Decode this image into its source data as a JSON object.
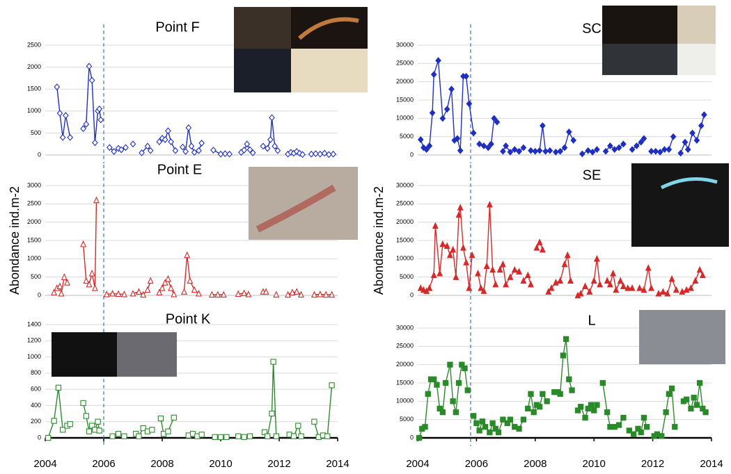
{
  "chart_data": [
    {
      "type": "line",
      "title": "Point F",
      "color": "#1f2fbf",
      "marker": "diamond",
      "marker_fill": "open",
      "xlim": [
        2004,
        2014
      ],
      "ylim": [
        0,
        2500
      ],
      "yticks": [
        0,
        500,
        1000,
        1500,
        2000,
        2500
      ],
      "grid": true,
      "vline": 2006,
      "x": [
        2004.4,
        2004.5,
        2004.6,
        2004.7,
        2004.85,
        2005.0,
        2005.3,
        2005.4,
        2005.5,
        2005.6,
        2005.7,
        2005.8,
        2005.85,
        2005.9,
        2006.0,
        2006.2,
        2006.35,
        2006.5,
        2006.6,
        2006.75,
        2006.9,
        2007.0,
        2007.15,
        2007.3,
        2007.5,
        2007.6,
        2007.75,
        2007.9,
        2008.0,
        2008.1,
        2008.2,
        2008.3,
        2008.45,
        2008.6,
        2008.7,
        2008.8,
        2008.9,
        2009.0,
        2009.1,
        2009.25,
        2009.35,
        2009.5,
        2009.75,
        2010.0,
        2010.15,
        2010.3,
        2010.5,
        2010.7,
        2010.8,
        2010.9,
        2011.0,
        2011.1,
        2011.3,
        2011.45,
        2011.6,
        2011.7,
        2011.75,
        2011.85,
        2011.95,
        2012.1,
        2012.3,
        2012.4,
        2012.5,
        2012.6,
        2012.7,
        2012.8,
        2012.95,
        2013.1,
        2013.25,
        2013.4,
        2013.55,
        2013.7,
        2013.85
      ],
      "values": [
        1550,
        950,
        400,
        900,
        400,
        null,
        600,
        700,
        2020,
        1700,
        280,
        1000,
        1050,
        800,
        null,
        170,
        80,
        150,
        120,
        170,
        null,
        250,
        null,
        50,
        200,
        100,
        null,
        300,
        380,
        350,
        550,
        300,
        100,
        null,
        180,
        80,
        620,
        200,
        60,
        100,
        270,
        null,
        110,
        20,
        30,
        20,
        null,
        60,
        110,
        250,
        120,
        50,
        null,
        200,
        150,
        350,
        850,
        200,
        100,
        null,
        20,
        60,
        40,
        80,
        40,
        10,
        null,
        20,
        30,
        20,
        40,
        10,
        20
      ]
    },
    {
      "type": "line",
      "title": "Point E",
      "ylabel": "Abondance ind.m-2",
      "color": "#d42a2a",
      "marker": "triangle",
      "marker_fill": "open",
      "xlim": [
        2004,
        2014
      ],
      "ylim": [
        0,
        3000
      ],
      "yticks": [
        0,
        500,
        1000,
        1500,
        2000,
        2500,
        3000
      ],
      "grid": true,
      "vline": 2006,
      "x": [
        2004.3,
        2004.4,
        2004.5,
        2004.55,
        2004.65,
        2004.75,
        2005.0,
        2005.3,
        2005.4,
        2005.5,
        2005.6,
        2005.7,
        2005.75,
        2005.9,
        2006.1,
        2006.3,
        2006.5,
        2006.7,
        2006.85,
        2007.0,
        2007.2,
        2007.35,
        2007.5,
        2007.6,
        2007.75,
        2007.9,
        2008.0,
        2008.1,
        2008.2,
        2008.3,
        2008.4,
        2008.6,
        2008.75,
        2008.85,
        2008.95,
        2009.1,
        2009.25,
        2009.5,
        2009.7,
        2009.9,
        2010.1,
        2010.35,
        2010.6,
        2010.8,
        2010.95,
        2011.2,
        2011.45,
        2011.55,
        2011.7,
        2011.9,
        2012.1,
        2012.3,
        2012.45,
        2012.6,
        2012.75,
        2013.0,
        2013.2,
        2013.4,
        2013.6,
        2013.8
      ],
      "values": [
        80,
        200,
        250,
        50,
        500,
        350,
        null,
        1400,
        400,
        300,
        600,
        200,
        2600,
        null,
        30,
        50,
        40,
        30,
        null,
        50,
        100,
        20,
        150,
        400,
        null,
        80,
        200,
        350,
        450,
        200,
        30,
        null,
        100,
        1100,
        400,
        150,
        50,
        null,
        20,
        20,
        20,
        null,
        40,
        60,
        30,
        null,
        100,
        100,
        null,
        20,
        null,
        20,
        80,
        100,
        20,
        null,
        20,
        30,
        20,
        20
      ]
    },
    {
      "type": "line",
      "title": "Point K",
      "color": "#2a8a2a",
      "marker": "square",
      "marker_fill": "open",
      "xlim": [
        2004,
        2014
      ],
      "ylim": [
        0,
        1400
      ],
      "yticks": [
        0,
        200,
        400,
        600,
        800,
        1000,
        1200,
        1400
      ],
      "xticks": [
        2004,
        2006,
        2008,
        2010,
        2012,
        2014
      ],
      "grid": true,
      "vline": 2006,
      "x": [
        2004.1,
        2004.3,
        2004.45,
        2004.6,
        2004.75,
        2004.85,
        2005.1,
        2005.3,
        2005.4,
        2005.5,
        2005.6,
        2005.7,
        2005.8,
        2005.85,
        2006.1,
        2006.3,
        2006.5,
        2006.7,
        2006.9,
        2007.1,
        2007.2,
        2007.35,
        2007.5,
        2007.65,
        2007.8,
        2007.95,
        2008.05,
        2008.2,
        2008.4,
        2008.65,
        2008.9,
        2009.05,
        2009.2,
        2009.35,
        2009.6,
        2009.8,
        2010.0,
        2010.2,
        2010.4,
        2010.6,
        2010.8,
        2011.0,
        2011.25,
        2011.5,
        2011.6,
        2011.75,
        2011.8,
        2011.9,
        2012.1,
        2012.35,
        2012.5,
        2012.65,
        2012.75,
        2013.0,
        2013.2,
        2013.35,
        2013.5,
        2013.65,
        2013.8
      ],
      "values": [
        0,
        210,
        620,
        100,
        150,
        170,
        null,
        430,
        270,
        80,
        150,
        100,
        200,
        90,
        null,
        20,
        50,
        20,
        null,
        50,
        20,
        120,
        80,
        100,
        null,
        240,
        50,
        80,
        250,
        null,
        30,
        50,
        20,
        40,
        null,
        10,
        10,
        10,
        null,
        20,
        10,
        20,
        null,
        70,
        20,
        300,
        940,
        20,
        null,
        40,
        20,
        150,
        20,
        null,
        200,
        10,
        30,
        20,
        650
      ]
    },
    {
      "type": "line",
      "title": "SC",
      "color": "#1f2fbf",
      "marker": "diamond",
      "marker_fill": "filled",
      "xlim": [
        2004,
        2014
      ],
      "ylim": [
        0,
        30000
      ],
      "yticks": [
        0,
        5000,
        10000,
        15000,
        20000,
        25000,
        30000
      ],
      "grid": true,
      "vline": 2005.8,
      "x": [
        2004.1,
        2004.2,
        2004.3,
        2004.4,
        2004.5,
        2004.55,
        2004.7,
        2004.85,
        2005.0,
        2005.15,
        2005.25,
        2005.35,
        2005.45,
        2005.55,
        2005.65,
        2005.75,
        2005.9,
        2006.0,
        2006.1,
        2006.25,
        2006.4,
        2006.5,
        2006.6,
        2006.7,
        2006.8,
        2006.9,
        2007.0,
        2007.15,
        2007.3,
        2007.45,
        2007.6,
        2007.72,
        2007.85,
        2008.0,
        2008.15,
        2008.25,
        2008.35,
        2008.5,
        2008.6,
        2008.7,
        2008.85,
        2009.0,
        2009.15,
        2009.3,
        2009.45,
        2009.6,
        2009.8,
        2009.95,
        2010.1,
        2010.25,
        2010.4,
        2010.55,
        2010.7,
        2010.85,
        2011.0,
        2011.15,
        2011.3,
        2011.45,
        2011.6,
        2011.7,
        2011.82,
        2011.95,
        2012.1,
        2012.25,
        2012.4,
        2012.55,
        2012.7,
        2012.82,
        2012.95,
        2013.1,
        2013.2,
        2013.35,
        2013.5,
        2013.65,
        2013.75
      ],
      "values": [
        4200,
        2000,
        1500,
        2500,
        11500,
        22000,
        25800,
        10000,
        12500,
        18000,
        4000,
        4500,
        1200,
        21500,
        21500,
        14000,
        6000,
        null,
        3000,
        2500,
        2000,
        3000,
        10000,
        9000,
        null,
        1000,
        2500,
        800,
        1500,
        1000,
        2000,
        null,
        1200,
        1000,
        1200,
        8000,
        1000,
        1200,
        null,
        800,
        1000,
        2000,
        6300,
        4000,
        null,
        300,
        1200,
        800,
        1500,
        null,
        1000,
        2500,
        1500,
        2000,
        3000,
        null,
        1500,
        2500,
        3500,
        4500,
        null,
        1000,
        1000,
        800,
        1500,
        1500,
        5000,
        null,
        500,
        3500,
        1500,
        6000,
        4000,
        8000,
        11000
      ]
    },
    {
      "type": "line",
      "title": "SE",
      "ylabel": "Abondance ind.m-2",
      "color": "#d42a2a",
      "marker": "triangle",
      "marker_fill": "filled",
      "xlim": [
        2004,
        2014
      ],
      "ylim": [
        0,
        30000
      ],
      "yticks": [
        0,
        5000,
        10000,
        15000,
        20000,
        25000,
        30000
      ],
      "grid": true,
      "vline": 2005.8,
      "x": [
        2004.1,
        2004.2,
        2004.3,
        2004.4,
        2004.55,
        2004.6,
        2004.75,
        2004.85,
        2005.0,
        2005.1,
        2005.2,
        2005.3,
        2005.4,
        2005.45,
        2005.55,
        2005.65,
        2005.75,
        2005.85,
        2005.95,
        2006.05,
        2006.15,
        2006.25,
        2006.35,
        2006.45,
        2006.55,
        2006.65,
        2006.72,
        2006.8,
        2006.9,
        2007.0,
        2007.15,
        2007.3,
        2007.45,
        2007.52,
        2007.6,
        2007.75,
        2007.85,
        2007.95,
        2008.05,
        2008.15,
        2008.25,
        2008.35,
        2008.45,
        2008.55,
        2008.7,
        2008.85,
        2009.0,
        2009.1,
        2009.2,
        2009.32,
        2009.45,
        2009.55,
        2009.7,
        2009.85,
        2010.0,
        2010.1,
        2010.2,
        2010.32,
        2010.45,
        2010.55,
        2010.65,
        2010.75,
        2010.9,
        2011.0,
        2011.08,
        2011.15,
        2011.3,
        2011.42,
        2011.55,
        2011.7,
        2011.85,
        2011.95,
        2012.08,
        2012.2,
        2012.35,
        2012.5,
        2012.65,
        2012.8,
        2012.9,
        2013.0,
        2013.15,
        2013.3,
        2013.45,
        2013.6,
        2013.7
      ],
      "values": [
        2000,
        1500,
        1200,
        2000,
        5500,
        19000,
        6000,
        14000,
        13500,
        11000,
        12500,
        5000,
        22000,
        24000,
        13000,
        9000,
        2000,
        11000,
        null,
        6000,
        2000,
        1200,
        8000,
        24800,
        7000,
        3000,
        null,
        7000,
        8500,
        3000,
        5000,
        7000,
        6500,
        null,
        4000,
        5500,
        3000,
        null,
        13000,
        14500,
        12500,
        null,
        1000,
        2000,
        3500,
        4000,
        8500,
        11000,
        4000,
        null,
        0,
        500,
        2500,
        1000,
        4000,
        10000,
        3000,
        null,
        4000,
        3000,
        6000,
        1500,
        4000,
        2500,
        null,
        2000,
        2000,
        null,
        2000,
        1500,
        7500,
        2000,
        null,
        500,
        1000,
        500,
        4500,
        1500,
        null,
        1000,
        1500,
        2000,
        4000,
        7000,
        5500
      ]
    },
    {
      "type": "line",
      "title": "L",
      "color": "#2a8a2a",
      "marker": "square",
      "marker_fill": "filled",
      "xlim": [
        2004,
        2014
      ],
      "ylim": [
        0,
        30000
      ],
      "yticks": [
        0,
        5000,
        10000,
        15000,
        20000,
        25000,
        30000
      ],
      "xticks": [
        2004,
        2006,
        2008,
        2010,
        2012,
        2014
      ],
      "grid": true,
      "vline": 2005.8,
      "x": [
        2004.05,
        2004.15,
        2004.25,
        2004.35,
        2004.45,
        2004.55,
        2004.65,
        2004.75,
        2004.85,
        2004.95,
        2005.1,
        2005.2,
        2005.3,
        2005.4,
        2005.5,
        2005.6,
        2005.7,
        2005.8,
        2005.9,
        2006.0,
        2006.1,
        2006.2,
        2006.3,
        2006.45,
        2006.55,
        2006.65,
        2006.75,
        2006.9,
        2007.05,
        2007.15,
        2007.3,
        2007.45,
        2007.6,
        2007.68,
        2007.75,
        2007.85,
        2007.95,
        2008.05,
        2008.15,
        2008.25,
        2008.4,
        2008.52,
        2008.65,
        2008.75,
        2008.85,
        2008.95,
        2009.05,
        2009.15,
        2009.25,
        2009.35,
        2009.45,
        2009.55,
        2009.7,
        2009.8,
        2009.9,
        2010.0,
        2010.1,
        2010.2,
        2010.3,
        2010.45,
        2010.55,
        2010.7,
        2010.85,
        2011.0,
        2011.1,
        2011.2,
        2011.35,
        2011.5,
        2011.6,
        2011.7,
        2011.8,
        2011.92,
        2012.05,
        2012.15,
        2012.3,
        2012.45,
        2012.55,
        2012.65,
        2012.75,
        2012.9,
        2013.05,
        2013.15,
        2013.3,
        2013.4,
        2013.5,
        2013.6,
        2013.7,
        2013.8
      ],
      "values": [
        0,
        2500,
        3000,
        12000,
        16000,
        16000,
        14500,
        8000,
        7000,
        15000,
        20000,
        10000,
        7000,
        15000,
        20000,
        19000,
        13000,
        null,
        6000,
        4000,
        2000,
        4500,
        3000,
        1500,
        4000,
        2500,
        1500,
        5000,
        4000,
        5000,
        3000,
        2500,
        5000,
        null,
        8000,
        12000,
        7000,
        9000,
        8500,
        12000,
        10000,
        null,
        12500,
        12500,
        12000,
        22500,
        27000,
        16000,
        13000,
        null,
        7500,
        8500,
        5500,
        8000,
        9000,
        7500,
        9000,
        null,
        15000,
        7000,
        3000,
        3000,
        3500,
        5500,
        null,
        2000,
        1000,
        2500,
        1500,
        5500,
        3000,
        null,
        500,
        1000,
        500,
        7000,
        12000,
        13500,
        3000,
        null,
        10000,
        10500,
        8000,
        11000,
        9000,
        15000,
        8000,
        7000
      ]
    }
  ]
}
